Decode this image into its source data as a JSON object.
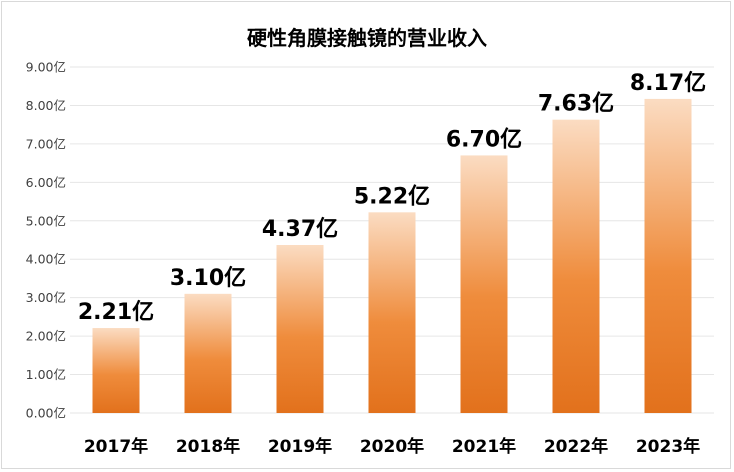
{
  "chart_data": {
    "type": "bar",
    "title": "硬性角膜接触镜的营业收入",
    "categories": [
      "2017年",
      "2018年",
      "2019年",
      "2020年",
      "2021年",
      "2022年",
      "2023年"
    ],
    "series": [
      {
        "values": [
          2.21,
          3.1,
          4.37,
          5.22,
          6.7,
          7.63,
          8.17
        ],
        "data_labels": [
          "2.21亿",
          "3.10亿",
          "4.37亿",
          "5.22亿",
          "6.70亿",
          "7.63亿",
          "8.17亿"
        ]
      }
    ],
    "yticks": [
      "0.00亿",
      "1.00亿",
      "2.00亿",
      "3.00亿",
      "4.00亿",
      "5.00亿",
      "6.00亿",
      "7.00亿",
      "8.00亿",
      "9.00亿"
    ],
    "ylim": [
      0,
      9
    ],
    "xlabel": "",
    "ylabel": "",
    "grid": true,
    "legend": "none",
    "colors": {
      "bar_top": "#fbdcc2",
      "bar_bottom": "#e2711c",
      "grid": "#e6e6e6"
    }
  }
}
